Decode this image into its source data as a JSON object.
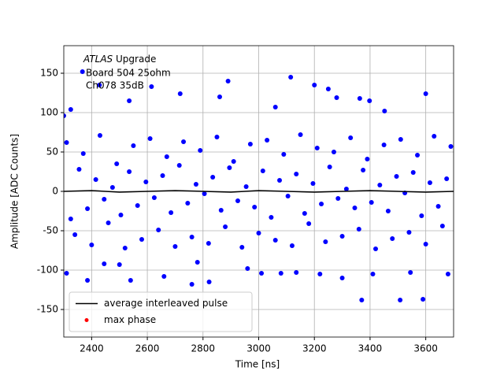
{
  "chart_data": {
    "type": "scatter",
    "annotations": [
      "ATLAS",
      "Upgrade",
      "Board 504 25ohm",
      "Ch078 35dB"
    ],
    "x_label": "Time [ns]",
    "y_label": "Amplitude [ADC Counts]",
    "xlim": [
      2300,
      3700
    ],
    "xticks": [
      2400,
      2600,
      2800,
      3000,
      3200,
      3400,
      3600
    ],
    "ylim": [
      -185,
      185
    ],
    "yticks": [
      -150,
      -100,
      -50,
      0,
      50,
      100,
      150
    ],
    "grid": true,
    "legend": "lower left",
    "series": [
      {
        "kind": "points",
        "color": "#0000ff",
        "x": [
          2310,
          2340,
          2370,
          2400,
          2430,
          2460,
          2490,
          2520,
          2550,
          2580,
          2610,
          2640,
          2670,
          2700,
          2730,
          2760,
          2790,
          2820,
          2850,
          2880,
          2910,
          2940,
          2970,
          3000,
          3030,
          3060,
          3090,
          3120,
          3150,
          3180,
          3210,
          3240,
          3270,
          3300,
          3330,
          3360,
          3390,
          3420,
          3450,
          3480,
          3510,
          3540,
          3570,
          3600,
          3630,
          3660,
          3690,
          2325,
          2355,
          2385,
          2415,
          2445,
          2475,
          2505,
          2535,
          2565,
          2595,
          2625,
          2655,
          2685,
          2715,
          2745,
          2775,
          2805,
          2835,
          2865,
          2895,
          2925,
          2955,
          2985,
          3015,
          3045,
          3075,
          3105,
          3135,
          3165,
          3195,
          3225,
          3255,
          3285,
          3315,
          3345,
          3375,
          3405,
          3435,
          3465,
          3495,
          3525,
          3555,
          3585,
          3615,
          3645,
          3675,
          2367,
          2428,
          2615,
          2718,
          2890,
          3115,
          3200,
          3250,
          3600,
          3060,
          2535,
          2300,
          2325,
          3452,
          2860,
          3363,
          3280,
          3398,
          2310,
          2385,
          2540,
          2660,
          2760,
          2822,
          3010,
          3080,
          3220,
          3370,
          3410,
          3508,
          3590,
          3680,
          2445,
          2780,
          2960,
          3300,
          2500,
          3135,
          3545
        ],
        "values": [
          62,
          -55,
          48,
          -68,
          71,
          -40,
          35,
          -72,
          58,
          -61,
          67,
          -49,
          44,
          -70,
          63,
          -58,
          52,
          -66,
          69,
          -45,
          38,
          -71,
          60,
          -53,
          65,
          -62,
          47,
          -69,
          72,
          -41,
          55,
          -64,
          50,
          -57,
          68,
          -48,
          41,
          -73,
          59,
          -60,
          66,
          -52,
          46,
          -67,
          70,
          -44,
          57,
          -35,
          28,
          -22,
          15,
          -10,
          5,
          -30,
          25,
          -18,
          12,
          -8,
          20,
          -27,
          33,
          -15,
          9,
          -3,
          18,
          -24,
          30,
          -12,
          6,
          -20,
          26,
          -33,
          14,
          -6,
          22,
          -28,
          10,
          -16,
          31,
          -9,
          3,
          -21,
          27,
          -14,
          8,
          -25,
          19,
          -2,
          24,
          -31,
          11,
          -19,
          16,
          152,
          135,
          133,
          124,
          140,
          145,
          135,
          130,
          124,
          107,
          115,
          96,
          104,
          102,
          120,
          118,
          119,
          115,
          -104,
          -113,
          -113,
          -108,
          -118,
          -115,
          -104,
          -104,
          -105,
          -138,
          -105,
          -138,
          -137,
          -105,
          -92,
          -90,
          -98,
          -110,
          -93,
          -103,
          -103
        ]
      },
      {
        "kind": "line",
        "name": "average interleaved pulse",
        "color": "#000000",
        "x": [
          2300,
          2400,
          2500,
          2600,
          2700,
          2800,
          2900,
          3000,
          3100,
          3200,
          3300,
          3400,
          3500,
          3600,
          3700
        ],
        "values": [
          0,
          1,
          -1,
          0,
          1,
          0,
          -1,
          1,
          0,
          -1,
          0,
          1,
          0,
          -1,
          0
        ]
      },
      {
        "kind": "points",
        "name": "max phase",
        "color": "#ff0000",
        "x": [],
        "values": []
      }
    ]
  }
}
